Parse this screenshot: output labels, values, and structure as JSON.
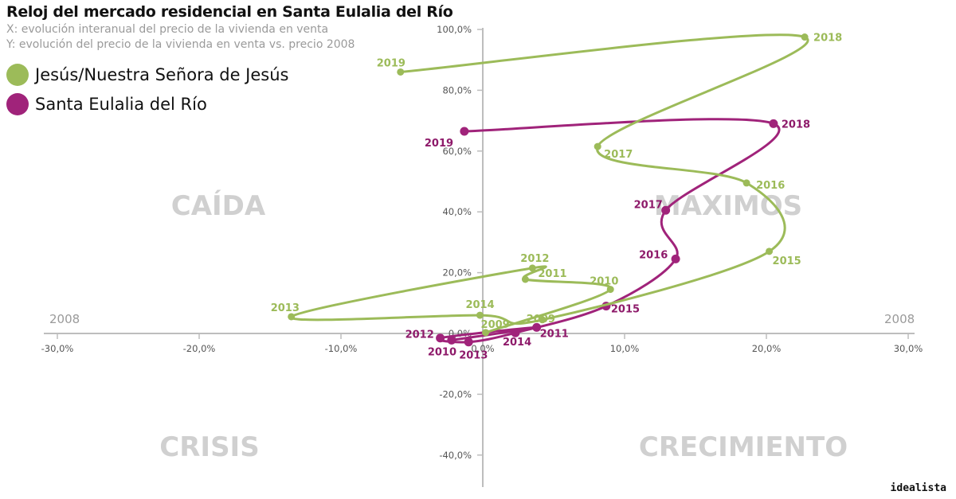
{
  "header": {
    "title": "Reloj del mercado residencial en Santa Eulalia del Río",
    "subtitle_x": "X: evolución interanual del precio de la vivienda en venta",
    "subtitle_y": "Y: evolución del precio de la vivienda en venta vs. precio 2008"
  },
  "brand": "idealista",
  "colors": {
    "green": "#9cbb59",
    "green_label": "#a6c03a",
    "purple": "#a0237a",
    "purple_label": "#8e1a6a",
    "axis": "#bdbdbd"
  },
  "chart_data": {
    "type": "line",
    "title": "Reloj del mercado residencial en Santa Eulalia del Río",
    "xlabel": "X: evolución interanual del precio de la vivienda en venta",
    "ylabel": "Y: evolución del precio de la vivienda en venta vs. precio 2008",
    "xlim": [
      -30,
      30
    ],
    "ylim": [
      -45,
      100
    ],
    "x_ticks": [
      -30,
      -20,
      -10,
      0,
      10,
      20,
      30
    ],
    "x_tick_labels": [
      "-30,0%",
      "-20,0%",
      "-10,0%",
      "0,0%",
      "10,0%",
      "20,0%",
      "30,0%"
    ],
    "y_ticks": [
      100,
      80,
      60,
      40,
      20,
      0,
      -20,
      -40
    ],
    "y_tick_labels": [
      "100,0%",
      "80,0%",
      "60,0%",
      "40,0%",
      "20,0%",
      "0,0%",
      "-20,0%",
      "-40,0%"
    ],
    "reference_label_left": "2008",
    "reference_label_right": "2008",
    "quadrants": {
      "top_left": "CAÍDA",
      "top_right": "MAXIMOS",
      "bottom_left": "CRISIS",
      "bottom_right": "CRECIMIENTO"
    },
    "series": [
      {
        "name": "Jesús/Nuestra Señora de Jesús",
        "color": "#9cbb59",
        "points": [
          {
            "year": "2009",
            "x": 0.2,
            "y": 0.3
          },
          {
            "year": "2010",
            "x": 9.0,
            "y": 14.5
          },
          {
            "year": "2011",
            "x": 3.0,
            "y": 17.8
          },
          {
            "year": "2012",
            "x": 3.5,
            "y": 21.5
          },
          {
            "year": "2013",
            "x": -13.5,
            "y": 5.5
          },
          {
            "year": "2014",
            "x": -0.2,
            "y": 6.0
          },
          {
            "year": "2009",
            "x": 4.2,
            "y": 4.5
          },
          {
            "year": "2015",
            "x": 20.2,
            "y": 27.0
          },
          {
            "year": "2016",
            "x": 18.6,
            "y": 49.5
          },
          {
            "year": "2017",
            "x": 8.1,
            "y": 61.5
          },
          {
            "year": "2018",
            "x": 22.7,
            "y": 97.5
          },
          {
            "year": "2019",
            "x": -5.8,
            "y": 86.0
          }
        ]
      },
      {
        "name": "Santa Eulalia del Río",
        "color": "#a0237a",
        "points": [
          {
            "year": "2010",
            "x": -2.2,
            "y": -2.2
          },
          {
            "year": "2011",
            "x": 3.8,
            "y": 2.0
          },
          {
            "year": "2012",
            "x": -3.0,
            "y": -1.5
          },
          {
            "year": "2013",
            "x": -1.0,
            "y": -2.8
          },
          {
            "year": "2014",
            "x": 2.3,
            "y": 0.2
          },
          {
            "year": "2015",
            "x": 8.7,
            "y": 9.0
          },
          {
            "year": "2016",
            "x": 13.6,
            "y": 24.5
          },
          {
            "year": "2017",
            "x": 12.9,
            "y": 40.5
          },
          {
            "year": "2018",
            "x": 20.5,
            "y": 69.0
          },
          {
            "year": "2019",
            "x": -1.3,
            "y": 66.5
          }
        ]
      }
    ]
  },
  "legend": [
    {
      "label": "Jesús/Nuestra Señora de Jesús",
      "color": "#9cbb59"
    },
    {
      "label": "Santa Eulalia del Río",
      "color": "#a0237a"
    }
  ]
}
